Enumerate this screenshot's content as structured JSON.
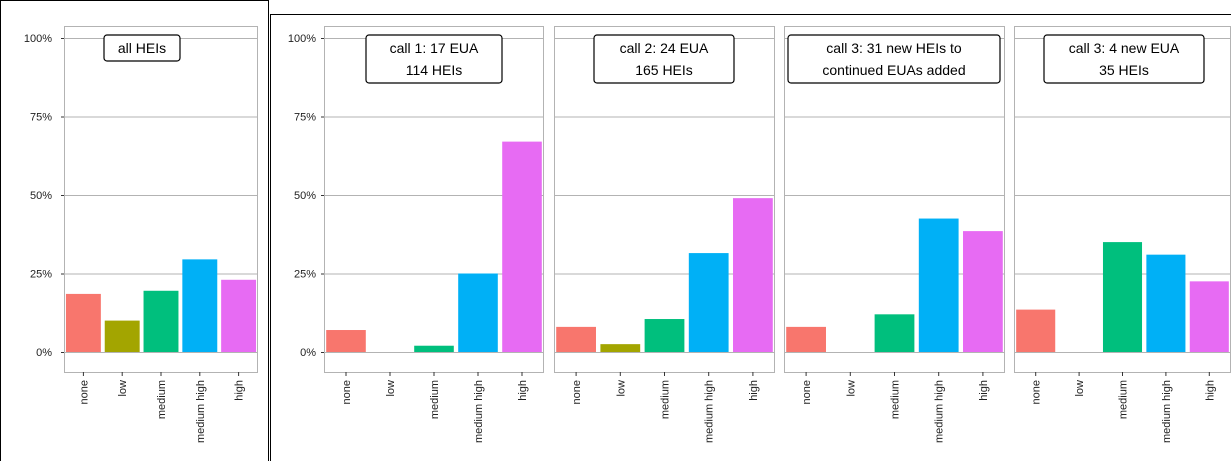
{
  "chart_data": [
    {
      "type": "bar",
      "annotation": [
        "all HEIs"
      ],
      "categories": [
        "none",
        "low",
        "medium",
        "medium high",
        "high"
      ],
      "values": [
        0.185,
        0.1,
        0.195,
        0.295,
        0.23
      ],
      "ylim": [
        0,
        1
      ],
      "yticks": [
        "0%",
        "25%",
        "50%",
        "75%",
        "100%"
      ],
      "grid": true,
      "colors": [
        "#F8766D",
        "#A3A500",
        "#00BF7D",
        "#00B0F6",
        "#E76BF3"
      ]
    },
    {
      "type": "bar",
      "annotation": [
        "call 1: 17 EUA",
        "114 HEIs"
      ],
      "categories": [
        "none",
        "low",
        "medium",
        "medium high",
        "high"
      ],
      "values": [
        0.07,
        0.0,
        0.02,
        0.25,
        0.67
      ],
      "ylim": [
        0,
        1
      ],
      "yticks": [
        "0%",
        "25%",
        "50%",
        "75%",
        "100%"
      ],
      "grid": true,
      "colors": [
        "#F8766D",
        "#A3A500",
        "#00BF7D",
        "#00B0F6",
        "#E76BF3"
      ]
    },
    {
      "type": "bar",
      "annotation": [
        "call 2: 24 EUA",
        "165 HEIs"
      ],
      "categories": [
        "none",
        "low",
        "medium",
        "medium high",
        "high"
      ],
      "values": [
        0.08,
        0.025,
        0.105,
        0.315,
        0.49
      ],
      "ylim": [
        0,
        1
      ],
      "grid": true,
      "colors": [
        "#F8766D",
        "#A3A500",
        "#00BF7D",
        "#00B0F6",
        "#E76BF3"
      ]
    },
    {
      "type": "bar",
      "annotation": [
        "call 3: 31 new HEIs to",
        "continued EUAs added"
      ],
      "categories": [
        "none",
        "low",
        "medium",
        "medium high",
        "high"
      ],
      "values": [
        0.08,
        0.0,
        0.12,
        0.425,
        0.385
      ],
      "ylim": [
        0,
        1
      ],
      "grid": true,
      "colors": [
        "#F8766D",
        "#A3A500",
        "#00BF7D",
        "#00B0F6",
        "#E76BF3"
      ]
    },
    {
      "type": "bar",
      "annotation": [
        "call 3: 4 new EUA",
        "35 HEIs"
      ],
      "categories": [
        "none",
        "low",
        "medium",
        "medium high",
        "high"
      ],
      "values": [
        0.135,
        0.0,
        0.35,
        0.31,
        0.225
      ],
      "ylim": [
        0,
        1
      ],
      "grid": true,
      "colors": [
        "#F8766D",
        "#A3A500",
        "#00BF7D",
        "#00B0F6",
        "#E76BF3"
      ]
    }
  ]
}
